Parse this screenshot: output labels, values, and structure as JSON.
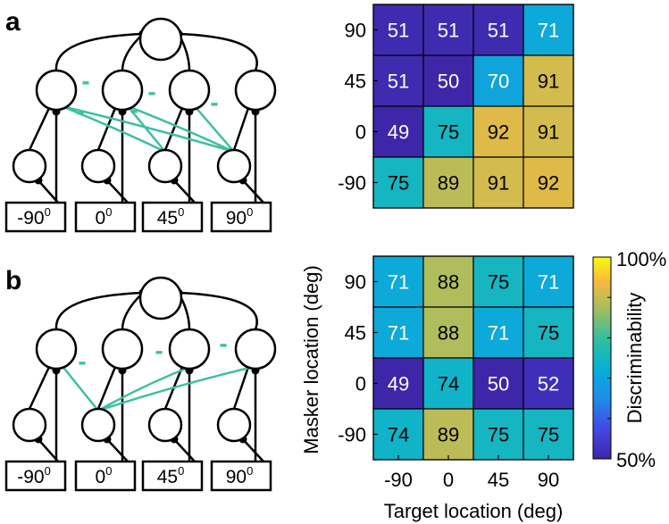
{
  "panel_a": {
    "label": "a",
    "network_inputs": [
      {
        "value": "-90",
        "unit": "0"
      },
      {
        "value": "0",
        "unit": "0"
      },
      {
        "value": "45",
        "unit": "0"
      },
      {
        "value": "90",
        "unit": "0"
      }
    ],
    "inhibition_mark": "-"
  },
  "panel_b": {
    "label": "b",
    "network_inputs": [
      {
        "value": "-90",
        "unit": "0"
      },
      {
        "value": "0",
        "unit": "0"
      },
      {
        "value": "45",
        "unit": "0"
      },
      {
        "value": "90",
        "unit": "0"
      }
    ],
    "inhibition_mark": "-"
  },
  "colors": {
    "inhibitory_connection": "#3dbfa3",
    "colormap_low": "#3e26a8",
    "colormap_mid": "#2db6a3",
    "colormap_high": "#f9fb0e",
    "cell_text_dark_bg": "#ffffff",
    "cell_text_light_bg": "#000000"
  },
  "chart_data": [
    {
      "type": "heatmap",
      "panel": "a",
      "x": [
        "-90",
        "0",
        "45",
        "90"
      ],
      "y": [
        "90",
        "45",
        "0",
        "-90"
      ],
      "values": [
        [
          51,
          51,
          51,
          71
        ],
        [
          51,
          50,
          70,
          91
        ],
        [
          49,
          75,
          92,
          91
        ],
        [
          75,
          89,
          91,
          92
        ]
      ]
    },
    {
      "type": "heatmap",
      "panel": "b",
      "x": [
        "-90",
        "0",
        "45",
        "90"
      ],
      "y": [
        "90",
        "45",
        "0",
        "-90"
      ],
      "values": [
        [
          71,
          88,
          75,
          71
        ],
        [
          71,
          88,
          71,
          75
        ],
        [
          49,
          74,
          50,
          52
        ],
        [
          74,
          89,
          75,
          75
        ]
      ],
      "xlabel": "Target location (deg)",
      "ylabel": "Masker location (deg)",
      "colorbar": {
        "label": "Discriminability",
        "min_label": "50%",
        "max_label": "100%",
        "range": [
          50,
          100
        ]
      }
    }
  ]
}
